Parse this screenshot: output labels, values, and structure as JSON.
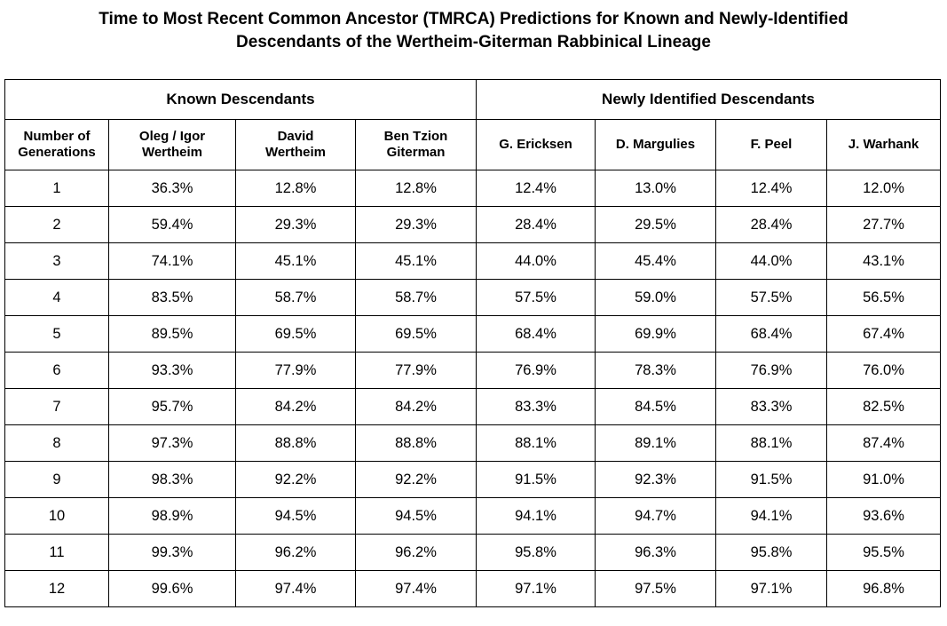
{
  "title": {
    "line1": "Time to Most Recent Common Ancestor (TMRCA) Predictions for Known and Newly-Identified",
    "line2": "Descendants of the Wertheim-Giterman Rabbinical Lineage"
  },
  "table": {
    "groups": [
      {
        "label": "Known Descendants"
      },
      {
        "label": "Newly Identified Descendants"
      }
    ],
    "columns": [
      {
        "line1": "Number of",
        "line2": "Generations"
      },
      {
        "line1": "Oleg / Igor",
        "line2": "Wertheim"
      },
      {
        "line1": "David",
        "line2": "Wertheim"
      },
      {
        "line1": "Ben Tzion",
        "line2": "Giterman"
      },
      {
        "line1": "G. Ericksen",
        "line2": ""
      },
      {
        "line1": "D. Margulies",
        "line2": ""
      },
      {
        "line1": "F. Peel",
        "line2": ""
      },
      {
        "line1": "J. Warhank",
        "line2": ""
      }
    ]
  },
  "chart_data": {
    "type": "table",
    "title": "Time to Most Recent Common Ancestor (TMRCA) Predictions for Known and Newly-Identified Descendants of the Wertheim-Giterman Rabbinical Lineage",
    "column_groups": [
      {
        "name": "Known Descendants",
        "columns": [
          "Oleg / Igor Wertheim",
          "David Wertheim",
          "Ben Tzion Giterman"
        ]
      },
      {
        "name": "Newly Identified Descendants",
        "columns": [
          "G. Ericksen",
          "D. Margulies",
          "F. Peel",
          "J. Warhank"
        ]
      }
    ],
    "headers": [
      "Number of Generations",
      "Oleg / Igor Wertheim",
      "David Wertheim",
      "Ben Tzion Giterman",
      "G. Ericksen",
      "D. Margulies",
      "F. Peel",
      "J. Warhank"
    ],
    "rows": [
      [
        "1",
        "36.3%",
        "12.8%",
        "12.8%",
        "12.4%",
        "13.0%",
        "12.4%",
        "12.0%"
      ],
      [
        "2",
        "59.4%",
        "29.3%",
        "29.3%",
        "28.4%",
        "29.5%",
        "28.4%",
        "27.7%"
      ],
      [
        "3",
        "74.1%",
        "45.1%",
        "45.1%",
        "44.0%",
        "45.4%",
        "44.0%",
        "43.1%"
      ],
      [
        "4",
        "83.5%",
        "58.7%",
        "58.7%",
        "57.5%",
        "59.0%",
        "57.5%",
        "56.5%"
      ],
      [
        "5",
        "89.5%",
        "69.5%",
        "69.5%",
        "68.4%",
        "69.9%",
        "68.4%",
        "67.4%"
      ],
      [
        "6",
        "93.3%",
        "77.9%",
        "77.9%",
        "76.9%",
        "78.3%",
        "76.9%",
        "76.0%"
      ],
      [
        "7",
        "95.7%",
        "84.2%",
        "84.2%",
        "83.3%",
        "84.5%",
        "83.3%",
        "82.5%"
      ],
      [
        "8",
        "97.3%",
        "88.8%",
        "88.8%",
        "88.1%",
        "89.1%",
        "88.1%",
        "87.4%"
      ],
      [
        "9",
        "98.3%",
        "92.2%",
        "92.2%",
        "91.5%",
        "92.3%",
        "91.5%",
        "91.0%"
      ],
      [
        "10",
        "98.9%",
        "94.5%",
        "94.5%",
        "94.1%",
        "94.7%",
        "94.1%",
        "93.6%"
      ],
      [
        "11",
        "99.3%",
        "96.2%",
        "96.2%",
        "95.8%",
        "96.3%",
        "95.8%",
        "95.5%"
      ],
      [
        "12",
        "99.6%",
        "97.4%",
        "97.4%",
        "97.1%",
        "97.5%",
        "97.1%",
        "96.8%"
      ]
    ]
  }
}
